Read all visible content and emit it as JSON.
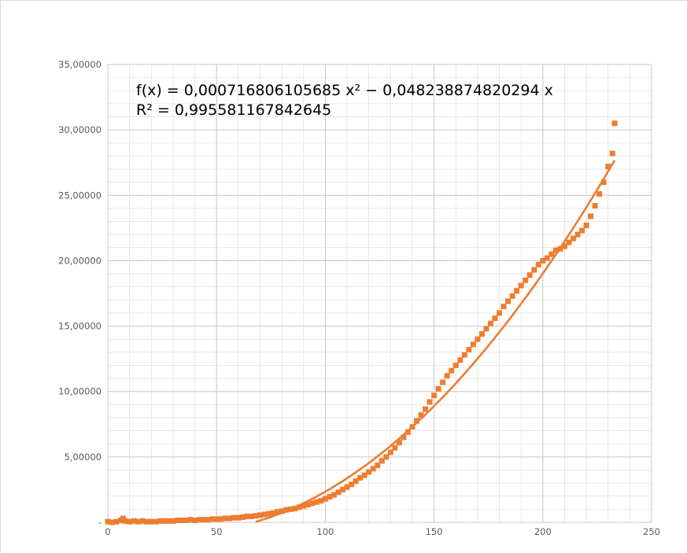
{
  "chart_data": {
    "type": "scatter",
    "colors": {
      "series": "#ed7d31",
      "grid": "#d9d9d9",
      "axis_text": "#595959"
    },
    "xlim": [
      0,
      250
    ],
    "ylim": [
      0,
      35
    ],
    "x_ticks": [
      {
        "v": 0,
        "label": "0"
      },
      {
        "v": 50,
        "label": "50"
      },
      {
        "v": 100,
        "label": "100"
      },
      {
        "v": 150,
        "label": "150"
      },
      {
        "v": 200,
        "label": "200"
      },
      {
        "v": 250,
        "label": "250"
      }
    ],
    "y_ticks": [
      {
        "v": 0,
        "label": "-"
      },
      {
        "v": 5,
        "label": "5,00000"
      },
      {
        "v": 10,
        "label": "10,00000"
      },
      {
        "v": 15,
        "label": "15,00000"
      },
      {
        "v": 20,
        "label": "20,00000"
      },
      {
        "v": 25,
        "label": "25,00000"
      },
      {
        "v": 30,
        "label": "30,00000"
      },
      {
        "v": 35,
        "label": "35,00000"
      }
    ],
    "grid": true,
    "legend": "none",
    "trendline": {
      "type": "polynomial",
      "equation": "f(x) = 0,000716806105685 x² − 0,048238874820294 x",
      "r_squared": "R² = 0,995581167842645",
      "a": 0.000716806105685,
      "b": -0.048238874820294,
      "x_range": [
        68,
        233
      ]
    },
    "series": [
      {
        "x": [
          0,
          2,
          4,
          6,
          7,
          8,
          10,
          12,
          14,
          16,
          18,
          20,
          22,
          24,
          26,
          28,
          30,
          32,
          34,
          36,
          38,
          40,
          42,
          44,
          46,
          48,
          50,
          52,
          54,
          56,
          58,
          60,
          62,
          64,
          66,
          68,
          70,
          72,
          74,
          76,
          78,
          80,
          82,
          84,
          86,
          88,
          90,
          92,
          94,
          96,
          98,
          100,
          102,
          104,
          106,
          108,
          110,
          112,
          114,
          116,
          118,
          120,
          122,
          124,
          126,
          128,
          130,
          132,
          134,
          136,
          138,
          140,
          142,
          144,
          146,
          148,
          150,
          152,
          154,
          156,
          158,
          160,
          162,
          164,
          166,
          168,
          170,
          172,
          174,
          176,
          178,
          180,
          182,
          184,
          186,
          188,
          190,
          192,
          194,
          196,
          198,
          200,
          202,
          204,
          206,
          208,
          210,
          212,
          214,
          216,
          218,
          220,
          222,
          224,
          226,
          228,
          230,
          232,
          233
        ],
        "y": [
          0.05,
          0.0,
          0.05,
          0.15,
          0.3,
          0.1,
          0.05,
          0.1,
          0.05,
          0.1,
          0.05,
          0.05,
          0.05,
          0.1,
          0.1,
          0.1,
          0.1,
          0.15,
          0.15,
          0.15,
          0.2,
          0.15,
          0.2,
          0.2,
          0.2,
          0.25,
          0.25,
          0.25,
          0.3,
          0.3,
          0.35,
          0.35,
          0.4,
          0.45,
          0.45,
          0.5,
          0.55,
          0.6,
          0.65,
          0.7,
          0.8,
          0.85,
          0.95,
          1.0,
          1.05,
          1.15,
          1.25,
          1.35,
          1.45,
          1.55,
          1.65,
          1.8,
          1.95,
          2.1,
          2.3,
          2.5,
          2.7,
          2.9,
          3.15,
          3.4,
          3.6,
          3.85,
          4.1,
          4.35,
          4.7,
          5.0,
          5.35,
          5.7,
          6.1,
          6.5,
          6.9,
          7.3,
          7.75,
          8.2,
          8.65,
          9.2,
          9.7,
          10.2,
          10.7,
          11.2,
          11.6,
          12.0,
          12.4,
          12.8,
          13.2,
          13.6,
          14.0,
          14.4,
          14.8,
          15.2,
          15.6,
          16.0,
          16.5,
          16.9,
          17.3,
          17.7,
          18.1,
          18.5,
          18.9,
          19.3,
          19.7,
          20.0,
          20.2,
          20.5,
          20.8,
          20.9,
          21.1,
          21.4,
          21.7,
          22.0,
          22.3,
          22.7,
          23.4,
          24.2,
          25.1,
          26.0,
          27.2,
          28.2,
          30.5
        ]
      }
    ]
  }
}
